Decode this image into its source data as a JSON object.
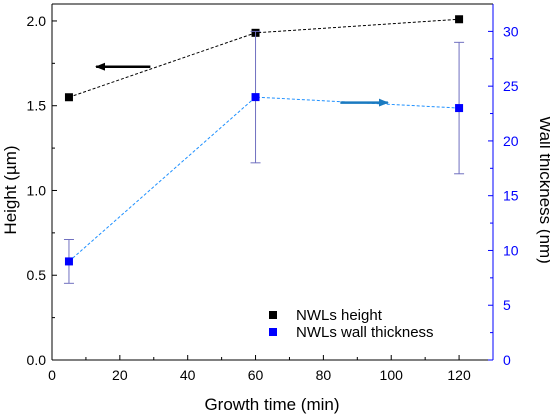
{
  "chart_data": {
    "type": "scatter",
    "title": "",
    "x": [
      5,
      60,
      120
    ],
    "xlabel": "Growth time (min)",
    "xlim": [
      0,
      130
    ],
    "xticks": [
      0,
      20,
      40,
      60,
      80,
      100,
      120
    ],
    "ylabel_left": "Height (µm)",
    "ylim_left": [
      0,
      2.1
    ],
    "yticks_left": [
      "0.0",
      "0.5",
      "1.0",
      "1.5",
      "2.0"
    ],
    "ylabel_right": "Wall thickness (nm)",
    "ylim_right": [
      0,
      32.5
    ],
    "yticks_right": [
      "0",
      "5",
      "10",
      "15",
      "20",
      "25",
      "30"
    ],
    "grid": false,
    "legend_position": "bottom-right",
    "series": [
      {
        "name": "NWLs height",
        "axis": "left",
        "color": "#000000",
        "marker": "square",
        "line": "dashed",
        "values": [
          1.55,
          1.93,
          2.01
        ]
      },
      {
        "name": "NWLs wall thickness",
        "axis": "right",
        "color": "#0000ff",
        "marker": "square",
        "line": "dashed",
        "line_color": "#1e90ff",
        "values": [
          9.0,
          24.0,
          23.0
        ],
        "error": [
          [
            2.0,
            2.0
          ],
          [
            6.0,
            6.0
          ],
          [
            6.0,
            6.0
          ]
        ],
        "error_color": "#7070c0"
      }
    ],
    "annotations": [
      {
        "type": "arrow",
        "direction": "left",
        "color": "#000000",
        "refers_to": "NWLs height"
      },
      {
        "type": "arrow",
        "direction": "right",
        "color": "#1a7ac0",
        "refers_to": "NWLs wall thickness"
      }
    ]
  }
}
